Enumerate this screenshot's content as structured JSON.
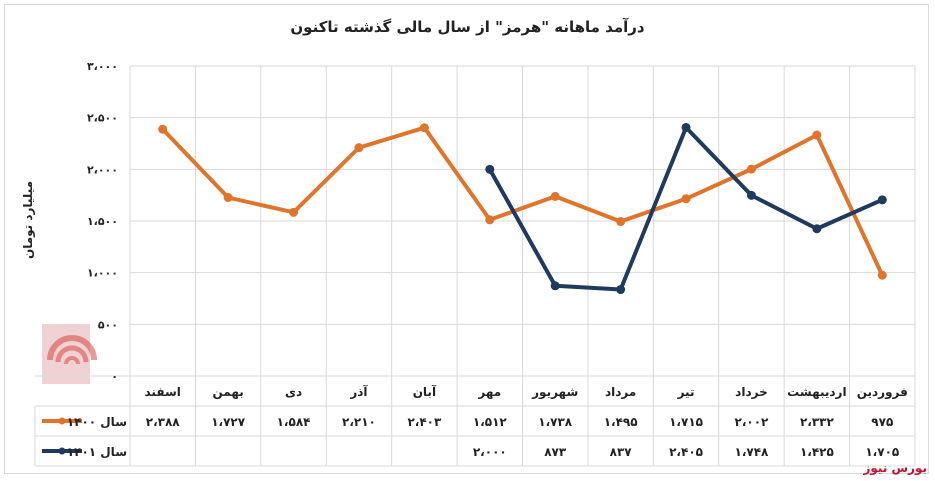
{
  "chart_data": {
    "type": "line",
    "title": "درآمد ماهانه \"هرمز\" از سال مالی گذشته تاکنون",
    "ylabel": "میلیارد تومان",
    "xlabel": "",
    "ylim": [
      0,
      3000
    ],
    "yticks": [
      0,
      500,
      1000,
      1500,
      2000,
      2500,
      3000
    ],
    "ytick_labels": [
      "۰",
      "۵۰۰",
      "۱،۰۰۰",
      "۱،۵۰۰",
      "۲،۰۰۰",
      "۲،۵۰۰",
      "۳،۰۰۰"
    ],
    "categories": [
      "فروردین",
      "اردیبهشت",
      "خرداد",
      "تیر",
      "مرداد",
      "شهریور",
      "مهر",
      "آبان",
      "آذر",
      "دی",
      "بهمن",
      "اسفند"
    ],
    "grid": true,
    "legend": "bottom-left table",
    "series": [
      {
        "name": "سال ۱۴۰۰",
        "color": "#E0742B",
        "values": [
          975,
          2332,
          2002,
          1715,
          1495,
          1738,
          1512,
          2403,
          2210,
          1584,
          1727,
          2388
        ],
        "labels": [
          "۹۷۵",
          "۲،۳۳۲",
          "۲،۰۰۲",
          "۱،۷۱۵",
          "۱،۴۹۵",
          "۱،۷۳۸",
          "۱،۵۱۲",
          "۲،۴۰۳",
          "۲،۲۱۰",
          "۱،۵۸۴",
          "۱،۷۲۷",
          "۲،۳۸۸"
        ]
      },
      {
        "name": "سال ۱۴۰۱",
        "color": "#1F3A5F",
        "values": [
          1705,
          1425,
          1748,
          2405,
          837,
          873,
          2000,
          null,
          null,
          null,
          null,
          null
        ],
        "labels": [
          "۱،۷۰۵",
          "۱،۴۲۵",
          "۱،۷۴۸",
          "۲،۴۰۵",
          "۸۳۷",
          "۸۷۳",
          "۲،۰۰۰",
          "",
          "",
          "",
          "",
          ""
        ]
      }
    ]
  },
  "source": "بورس نیوز"
}
